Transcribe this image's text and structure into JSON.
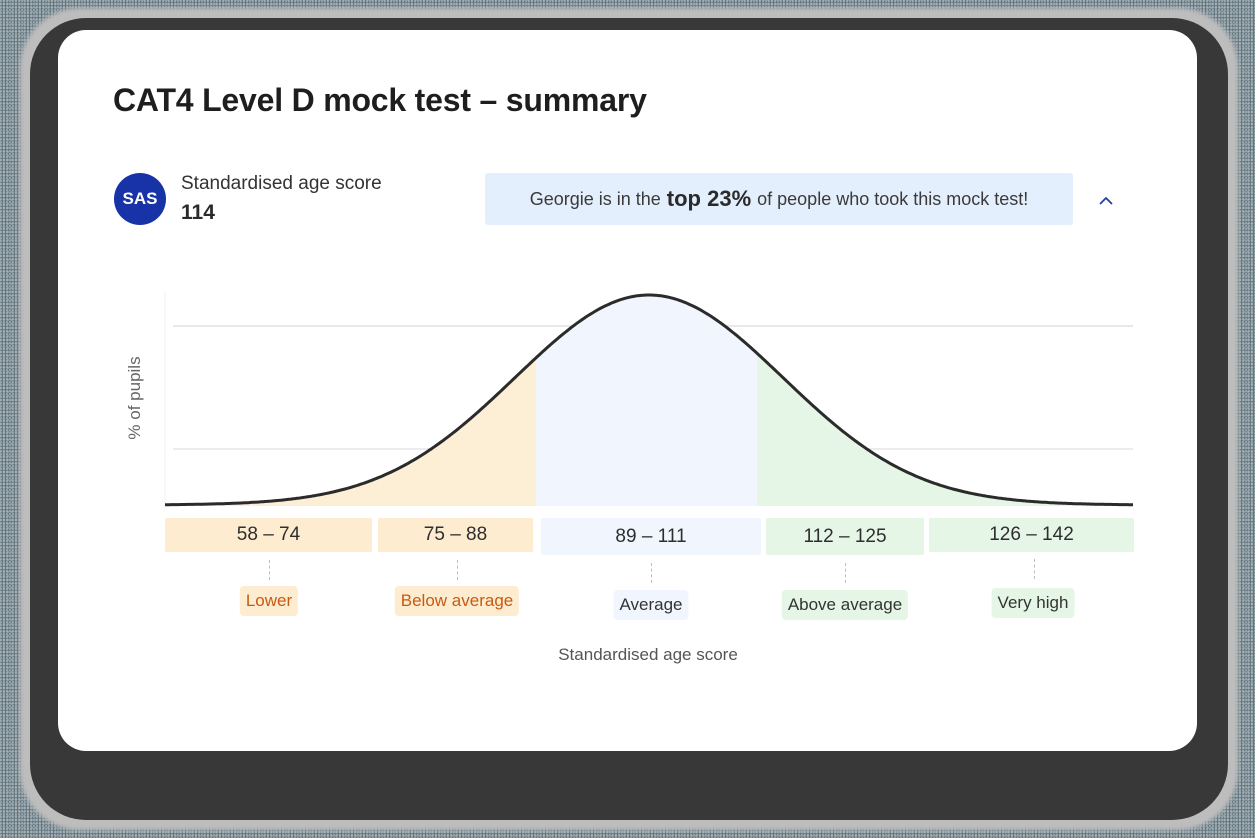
{
  "card": {
    "title": "CAT4 Level D mock test – summary"
  },
  "score": {
    "badge": "SAS",
    "label": "Standardised age score",
    "value": "114"
  },
  "banner": {
    "prefix": "Georgie is in the",
    "highlight": "top 23%",
    "suffix": "of people who took this mock test!",
    "collapse_icon": "chevron-up-icon"
  },
  "colors": {
    "badge_bg": "#1833a8",
    "banner_bg": "#e3effd",
    "orange_fill": "#fdeed6",
    "orange_text": "#c75a12",
    "blue_fill": "#f1f6fe",
    "green_fill": "#e6f6e6",
    "curve": "#2b2b2b",
    "chevron": "#1f3fa8"
  },
  "chart_data": {
    "type": "area",
    "title": "CAT4 Level D mock test – summary",
    "xlabel": "Standardised age score",
    "ylabel": "% of pupils",
    "grid": true,
    "curve": "normal distribution",
    "mean": 100,
    "std": 15,
    "xlim": [
      58,
      142
    ],
    "categories": [
      "58 – 74",
      "75 – 88",
      "89 – 111",
      "112 – 125",
      "126 – 142"
    ],
    "bands": [
      {
        "range": "58 – 74",
        "min": 58,
        "max": 74,
        "label": "Lower",
        "color": "#fdeed6"
      },
      {
        "range": "75 – 88",
        "min": 75,
        "max": 88,
        "label": "Below average",
        "color": "#fdeed6"
      },
      {
        "range": "89 – 111",
        "min": 89,
        "max": 111,
        "label": "Average",
        "color": "#f1f6fe"
      },
      {
        "range": "112 – 125",
        "min": 112,
        "max": 125,
        "label": "Above average",
        "color": "#e6f6e6"
      },
      {
        "range": "126 – 142",
        "min": 126,
        "max": 142,
        "label": "Very high",
        "color": "#e6f6e6"
      }
    ],
    "student_score": 114,
    "percentile_text": "top 23%"
  },
  "ranges": [
    {
      "text": "58 – 74",
      "label": "Lower"
    },
    {
      "text": "75 – 88",
      "label": "Below average"
    },
    {
      "text": "89 – 111",
      "label": "Average"
    },
    {
      "text": "112 – 125",
      "label": "Above average"
    },
    {
      "text": "126 – 142",
      "label": "Very high"
    }
  ],
  "axis": {
    "y_label": "% of pupils",
    "x_label": "Standardised age score"
  }
}
